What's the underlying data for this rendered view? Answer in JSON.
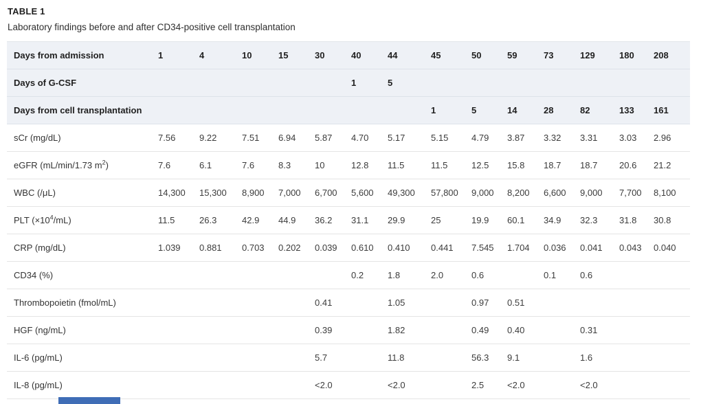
{
  "page": {
    "title": "TABLE 1",
    "subtitle": "Laboratory findings before and after CD34-positive cell transplantation"
  },
  "colors": {
    "header_row_bg": "#eef1f6",
    "row_border": "#e4e4e4",
    "footer_bar": "#3f6db6"
  },
  "table": {
    "rows": [
      {
        "kind": "header",
        "label_pre": "Days from admission",
        "values": [
          "1",
          "4",
          "10",
          "15",
          "30",
          "40",
          "44",
          "45",
          "50",
          "59",
          "73",
          "129",
          "180",
          "208"
        ]
      },
      {
        "kind": "header",
        "label_pre": "Days of G-CSF",
        "values": [
          "",
          "",
          "",
          "",
          "",
          "1",
          "5",
          "",
          "",
          "",
          "",
          "",
          "",
          ""
        ]
      },
      {
        "kind": "header",
        "label_pre": "Days from cell transplantation",
        "values": [
          "",
          "",
          "",
          "",
          "",
          "",
          "",
          "1",
          "5",
          "14",
          "28",
          "82",
          "133",
          "161"
        ]
      },
      {
        "kind": "data",
        "label_pre": "sCr (mg/dL)",
        "values": [
          "7.56",
          "9.22",
          "7.51",
          "6.94",
          "5.87",
          "4.70",
          "5.17",
          "5.15",
          "4.79",
          "3.87",
          "3.32",
          "3.31",
          "3.03",
          "2.96"
        ]
      },
      {
        "kind": "data",
        "label_pre": "eGFR (mL/min/1.73 m",
        "label_sup": "2",
        "label_post": ")",
        "values": [
          "7.6",
          "6.1",
          "7.6",
          "8.3",
          "10",
          "12.8",
          "11.5",
          "11.5",
          "12.5",
          "15.8",
          "18.7",
          "18.7",
          "20.6",
          "21.2"
        ]
      },
      {
        "kind": "data",
        "label_pre": "WBC (/μL)",
        "values": [
          "14,300",
          "15,300",
          "8,900",
          "7,000",
          "6,700",
          "5,600",
          "49,300",
          "57,800",
          "9,000",
          "8,200",
          "6,600",
          "9,000",
          "7,700",
          "8,100"
        ]
      },
      {
        "kind": "data",
        "label_pre": "PLT (×10",
        "label_sup": "4",
        "label_post": "/mL)",
        "values": [
          "11.5",
          "26.3",
          "42.9",
          "44.9",
          "36.2",
          "31.1",
          "29.9",
          "25",
          "19.9",
          "60.1",
          "34.9",
          "32.3",
          "31.8",
          "30.8"
        ]
      },
      {
        "kind": "data",
        "label_pre": "CRP (mg/dL)",
        "values": [
          "1.039",
          "0.881",
          "0.703",
          "0.202",
          "0.039",
          "0.610",
          "0.410",
          "0.441",
          "7.545",
          "1.704",
          "0.036",
          "0.041",
          "0.043",
          "0.040"
        ]
      },
      {
        "kind": "data",
        "label_pre": "CD34 (%)",
        "values": [
          "",
          "",
          "",
          "",
          "",
          "0.2",
          "1.8",
          "2.0",
          "0.6",
          "",
          "0.1",
          "0.6",
          "",
          ""
        ]
      },
      {
        "kind": "data",
        "label_pre": "Thrombopoietin (fmol/mL)",
        "values": [
          "",
          "",
          "",
          "",
          "0.41",
          "",
          "1.05",
          "",
          "0.97",
          "0.51",
          "",
          "",
          "",
          ""
        ]
      },
      {
        "kind": "data",
        "label_pre": "HGF (ng/mL)",
        "values": [
          "",
          "",
          "",
          "",
          "0.39",
          "",
          "1.82",
          "",
          "0.49",
          "0.40",
          "",
          "0.31",
          "",
          ""
        ]
      },
      {
        "kind": "data",
        "label_pre": "IL-6 (pg/mL)",
        "values": [
          "",
          "",
          "",
          "",
          "5.7",
          "",
          "11.8",
          "",
          "56.3",
          "9.1",
          "",
          "1.6",
          "",
          ""
        ]
      },
      {
        "kind": "data",
        "label_pre": "IL-8 (pg/mL)",
        "values": [
          "",
          "",
          "",
          "",
          "<2.0",
          "",
          "<2.0",
          "",
          "2.5",
          "<2.0",
          "",
          "<2.0",
          "",
          ""
        ]
      }
    ]
  }
}
